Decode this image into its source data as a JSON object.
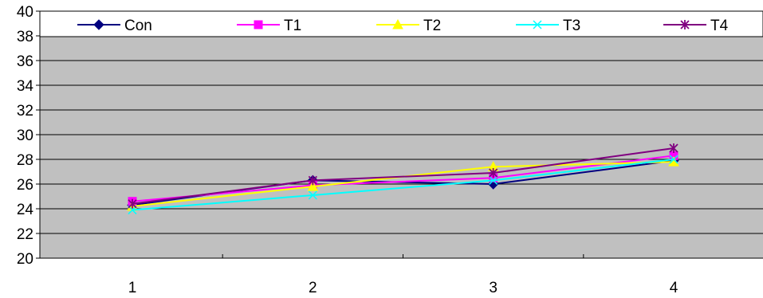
{
  "chart_data": {
    "type": "line",
    "categories": [
      "1",
      "2",
      "3",
      "4"
    ],
    "ylim": [
      20,
      40
    ],
    "yticks": [
      "20",
      "22",
      "24",
      "26",
      "28",
      "30",
      "32",
      "34",
      "36",
      "38",
      "40"
    ],
    "grid": true,
    "legend_position": "top",
    "series": [
      {
        "name": "Con",
        "values": [
          24.3,
          26.3,
          26.0,
          27.9
        ],
        "color": "#000080",
        "marker": "diamond"
      },
      {
        "name": "T1",
        "values": [
          24.6,
          25.9,
          26.5,
          28.3
        ],
        "color": "#ff00ff",
        "marker": "square"
      },
      {
        "name": "T2",
        "values": [
          24.2,
          25.8,
          27.4,
          27.8
        ],
        "color": "#ffff00",
        "marker": "triangle"
      },
      {
        "name": "T3",
        "values": [
          23.9,
          25.1,
          26.3,
          28.0
        ],
        "color": "#00ffff",
        "marker": "x"
      },
      {
        "name": "T4",
        "values": [
          24.4,
          26.3,
          26.9,
          28.9
        ],
        "color": "#800080",
        "marker": "asterisk"
      }
    ],
    "plot_background": "#c0c0c0"
  }
}
